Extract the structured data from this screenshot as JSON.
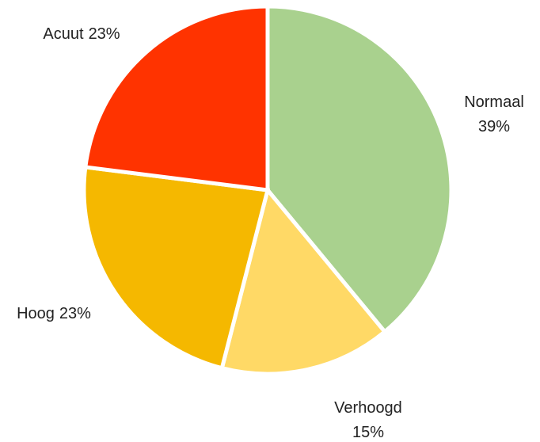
{
  "chart_data": {
    "type": "pie",
    "categories": [
      "Normaal",
      "Verhoogd",
      "Hoog",
      "Acuut"
    ],
    "values": [
      39,
      15,
      23,
      23
    ],
    "value_labels": [
      "39%",
      "15%",
      "23%",
      "23%"
    ],
    "colors": [
      "#a9d18e",
      "#ffd966",
      "#f5b800",
      "#ff3300"
    ]
  }
}
